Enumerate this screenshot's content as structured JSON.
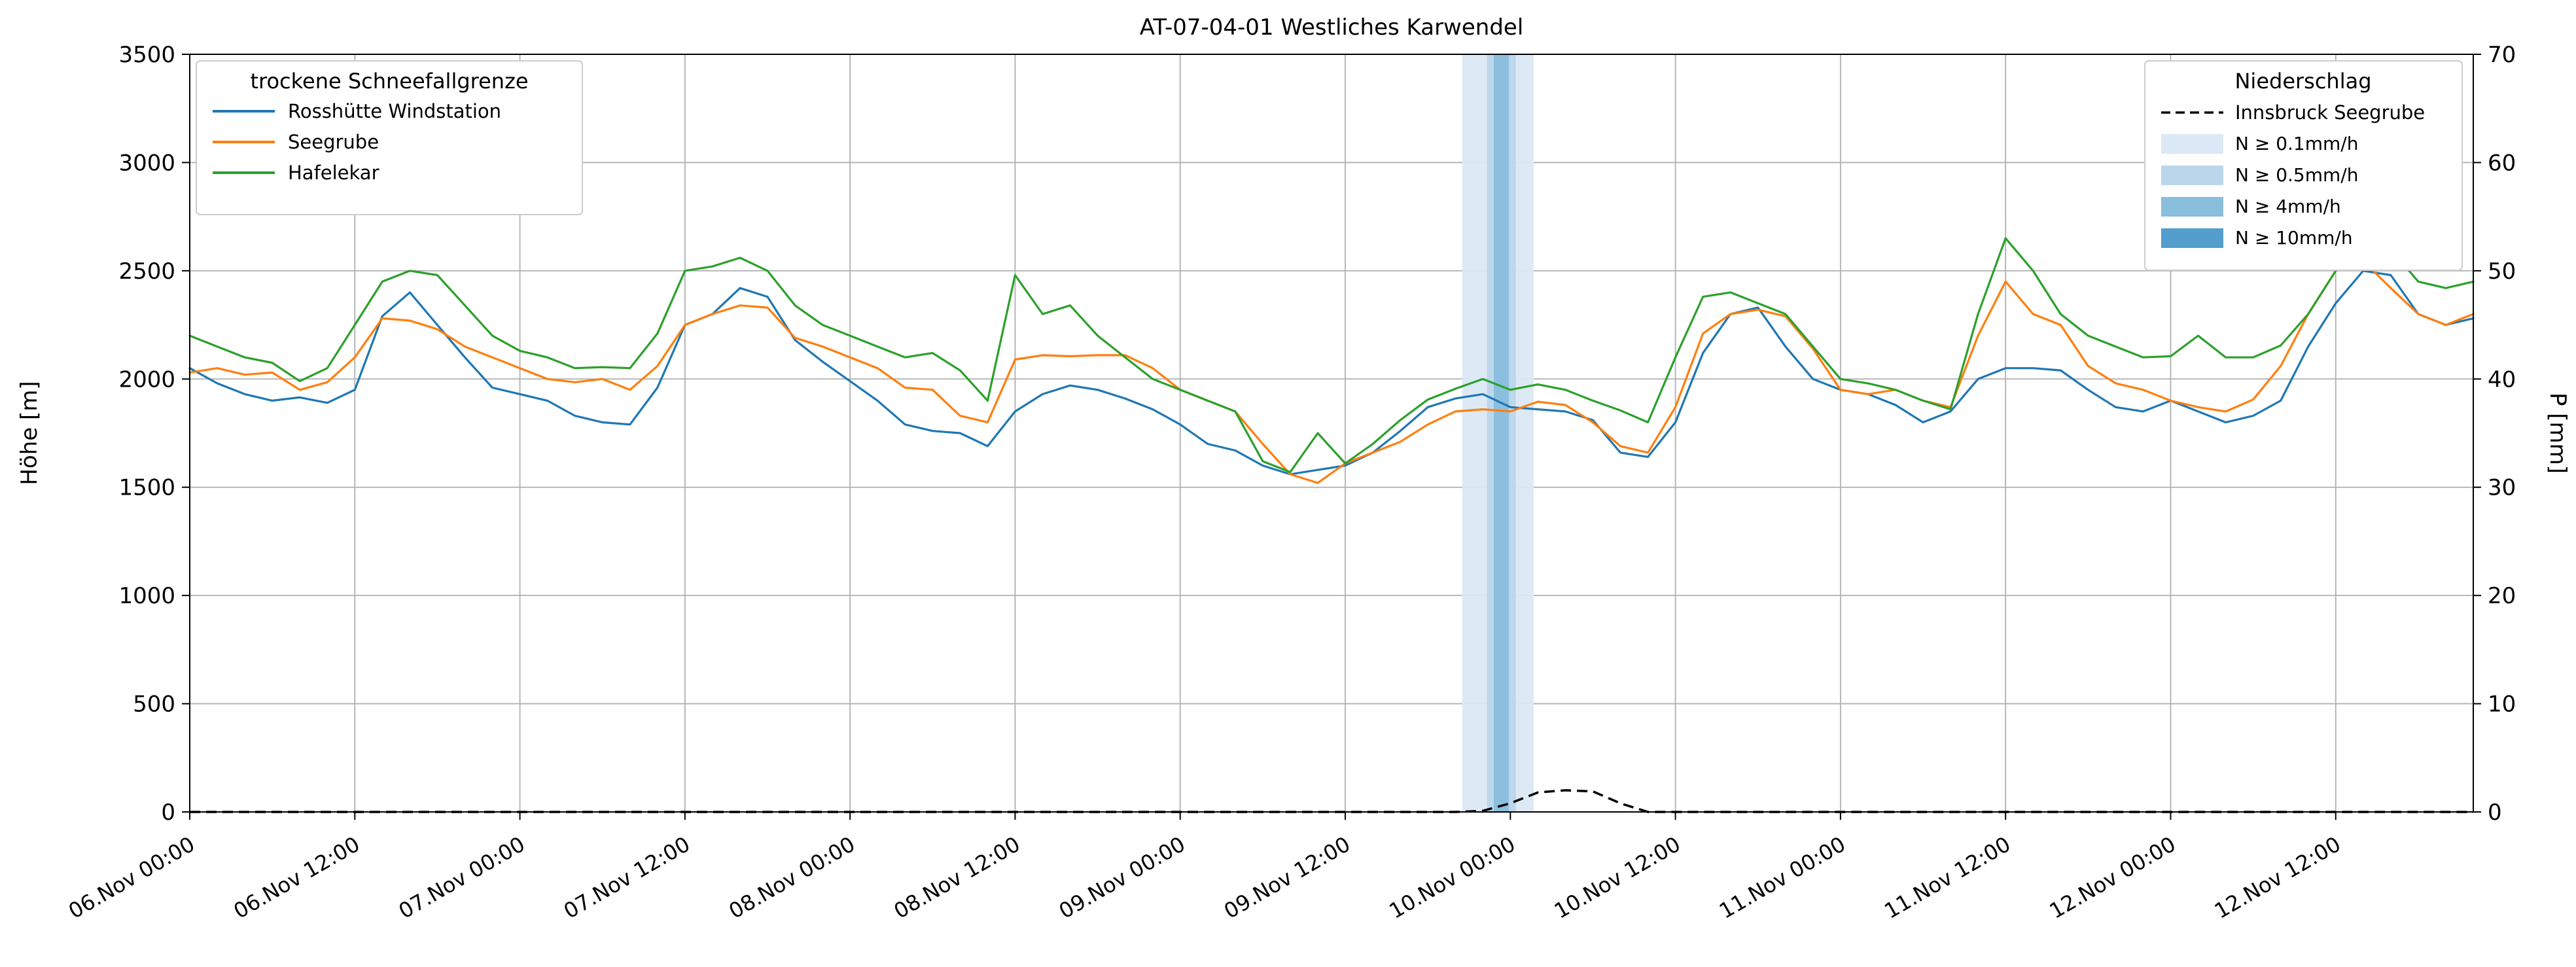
{
  "chart_data": {
    "type": "line",
    "title": "AT-07-04-01 Westliches Karwendel",
    "ylabel_left": "Höhe [m]",
    "ylabel_right": "P [mm]",
    "ylim_left": [
      0,
      3500
    ],
    "ylim_right": [
      0,
      70
    ],
    "yticks_left": [
      0,
      500,
      1000,
      1500,
      2000,
      2500,
      3000,
      3500
    ],
    "yticks_right": [
      0,
      10,
      20,
      30,
      40,
      50,
      60,
      70
    ],
    "x_unit": "hours since 06.Nov 00:00",
    "xlim": [
      0,
      166
    ],
    "grid": true,
    "xticks": [
      {
        "t": 0,
        "label": "06.Nov 00:00"
      },
      {
        "t": 12,
        "label": "06.Nov 12:00"
      },
      {
        "t": 24,
        "label": "07.Nov 00:00"
      },
      {
        "t": 36,
        "label": "07.Nov 12:00"
      },
      {
        "t": 48,
        "label": "08.Nov 00:00"
      },
      {
        "t": 60,
        "label": "08.Nov 12:00"
      },
      {
        "t": 72,
        "label": "09.Nov 00:00"
      },
      {
        "t": 84,
        "label": "09.Nov 12:00"
      },
      {
        "t": 96,
        "label": "10.Nov 00:00"
      },
      {
        "t": 108,
        "label": "10.Nov 12:00"
      },
      {
        "t": 120,
        "label": "11.Nov 00:00"
      },
      {
        "t": 132,
        "label": "11.Nov 12:00"
      },
      {
        "t": 144,
        "label": "12.Nov 00:00"
      },
      {
        "t": 156,
        "label": "12.Nov 12:00"
      }
    ],
    "x": [
      0,
      2,
      4,
      6,
      8,
      10,
      12,
      14,
      16,
      18,
      20,
      22,
      24,
      26,
      28,
      30,
      32,
      34,
      36,
      38,
      40,
      42,
      44,
      46,
      48,
      50,
      52,
      54,
      56,
      58,
      60,
      62,
      64,
      66,
      68,
      70,
      72,
      74,
      76,
      78,
      80,
      82,
      84,
      86,
      88,
      90,
      92,
      94,
      96,
      98,
      100,
      102,
      104,
      106,
      108,
      110,
      112,
      114,
      116,
      118,
      120,
      122,
      124,
      126,
      128,
      130,
      132,
      134,
      136,
      138,
      140,
      142,
      144,
      146,
      148,
      150,
      152,
      154,
      156,
      158,
      160,
      162,
      164,
      166
    ],
    "series": [
      {
        "name": "Rosshütte Windstation",
        "color": "#1f77b4",
        "axis": "left",
        "values": [
          2050,
          1980,
          1930,
          1900,
          1915,
          1890,
          1950,
          2290,
          2400,
          2250,
          2100,
          1960,
          1930,
          1900,
          1830,
          1800,
          1790,
          1960,
          2250,
          2300,
          2420,
          2380,
          2180,
          2080,
          1990,
          1900,
          1790,
          1760,
          1750,
          1690,
          1850,
          1930,
          1970,
          1950,
          1910,
          1860,
          1790,
          1700,
          1670,
          1600,
          1560,
          1580,
          1600,
          1660,
          1760,
          1870,
          1910,
          1930,
          1870,
          1860,
          1850,
          1810,
          1660,
          1640,
          1800,
          2120,
          2300,
          2330,
          2150,
          2000,
          1950,
          1930,
          1880,
          1800,
          1850,
          2000,
          2050,
          2050,
          2040,
          1950,
          1870,
          1850,
          1900,
          1850,
          1800,
          1830,
          1900,
          2150,
          2350,
          2500,
          2480,
          2300,
          2250,
          2280
        ]
      },
      {
        "name": "Seegrube",
        "color": "#ff7f0e",
        "axis": "left",
        "values": [
          2030,
          2050,
          2020,
          2030,
          1950,
          1985,
          2100,
          2280,
          2270,
          2230,
          2150,
          2100,
          2050,
          2000,
          1985,
          2000,
          1950,
          2060,
          2250,
          2300,
          2340,
          2330,
          2190,
          2150,
          2100,
          2050,
          1960,
          1950,
          1830,
          1800,
          2090,
          2110,
          2105,
          2110,
          2110,
          2050,
          1950,
          1900,
          1850,
          1700,
          1560,
          1520,
          1610,
          1660,
          1710,
          1790,
          1850,
          1860,
          1850,
          1895,
          1880,
          1800,
          1690,
          1660,
          1870,
          2210,
          2300,
          2320,
          2290,
          2140,
          1950,
          1930,
          1950,
          1900,
          1870,
          2200,
          2450,
          2300,
          2250,
          2060,
          1980,
          1950,
          1900,
          1870,
          1850,
          1905,
          2060,
          2300,
          2500,
          2545,
          2420,
          2300,
          2250,
          2300
        ]
      },
      {
        "name": "Hafelekar",
        "color": "#2ca02c",
        "axis": "left",
        "values": [
          2200,
          2150,
          2100,
          2075,
          1990,
          2050,
          2250,
          2450,
          2500,
          2480,
          2340,
          2200,
          2130,
          2100,
          2050,
          2055,
          2050,
          2210,
          2500,
          2520,
          2560,
          2500,
          2340,
          2250,
          2200,
          2150,
          2100,
          2120,
          2040,
          1900,
          2480,
          2300,
          2340,
          2200,
          2100,
          2000,
          1950,
          1900,
          1850,
          1620,
          1570,
          1750,
          1610,
          1700,
          1810,
          1905,
          1955,
          2000,
          1950,
          1975,
          1950,
          1900,
          1855,
          1800,
          2100,
          2380,
          2400,
          2350,
          2300,
          2150,
          2000,
          1980,
          1950,
          1900,
          1860,
          2300,
          2650,
          2500,
          2300,
          2200,
          2150,
          2100,
          2105,
          2200,
          2100,
          2100,
          2155,
          2300,
          2500,
          2800,
          2600,
          2450,
          2420,
          2450
        ]
      }
    ],
    "precip_line": {
      "name": "Innsbruck Seegrube",
      "color": "#000000",
      "style": "dashed",
      "axis": "right",
      "values": [
        0,
        0,
        0,
        0,
        0,
        0,
        0,
        0,
        0,
        0,
        0,
        0,
        0,
        0,
        0,
        0,
        0,
        0,
        0,
        0,
        0,
        0,
        0,
        0,
        0,
        0,
        0,
        0,
        0,
        0,
        0,
        0,
        0,
        0,
        0,
        0,
        0,
        0,
        0,
        0,
        0,
        0,
        0,
        0,
        0,
        0,
        0,
        0.1,
        0.8,
        1.8,
        2.0,
        1.9,
        0.8,
        0,
        0,
        0,
        0,
        0,
        0,
        0,
        0,
        0,
        0,
        0,
        0,
        0,
        0,
        0,
        0,
        0,
        0,
        0,
        0,
        0,
        0,
        0,
        0,
        0,
        0,
        0,
        0,
        0,
        0,
        0
      ]
    },
    "precip_bands": {
      "levels": [
        {
          "label": "N ≥ 0.1mm/h",
          "color": "#dbe9f6"
        },
        {
          "label": "N ≥ 0.5mm/h",
          "color": "#bad6eb"
        },
        {
          "label": "N ≥ 4mm/h",
          "color": "#89bedc"
        },
        {
          "label": "N ≥ 10mm/h",
          "color": "#539ecd"
        }
      ],
      "spans": [
        {
          "level": 0,
          "from": 92.5,
          "to": 97.7
        },
        {
          "level": 1,
          "from": 94.3,
          "to": 96.4
        },
        {
          "level": 2,
          "from": 94.8,
          "to": 95.9
        }
      ]
    },
    "legends": {
      "left_title": "trockene Schneefallgrenze",
      "right_title": "Niederschlag"
    },
    "layout": {
      "grid_color": "#b0b0b0",
      "spine_color": "#000000",
      "legend_border": "#cccccc",
      "legend_bg": "#ffffff"
    }
  }
}
